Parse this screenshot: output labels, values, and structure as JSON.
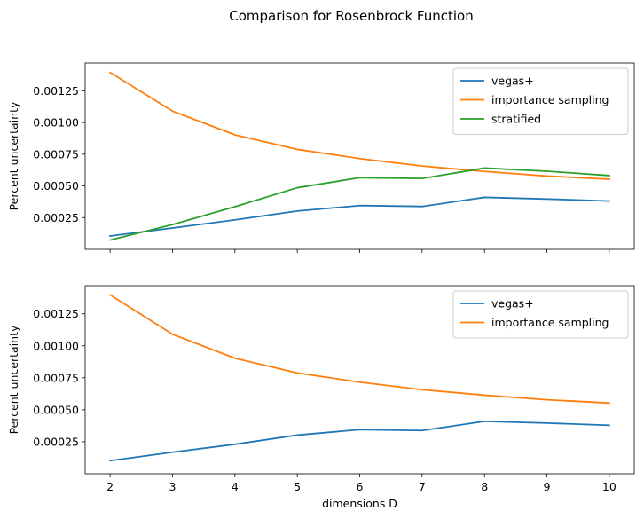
{
  "figure": {
    "title": "Comparison for Rosenbrock Function"
  },
  "chart_data": [
    {
      "type": "line",
      "title": "",
      "xlabel": "",
      "ylabel": "Percent uncertainty",
      "x": [
        2,
        3,
        4,
        5,
        6,
        7,
        8,
        9,
        10
      ],
      "xlim": [
        1.6,
        10.4
      ],
      "ylim": [
        0.0,
        0.00147
      ],
      "xticks": [
        2,
        3,
        4,
        5,
        6,
        7,
        8,
        9,
        10
      ],
      "xtick_labels_shown": false,
      "yticks": [
        0.00025,
        0.0005,
        0.00075,
        0.001,
        0.00125
      ],
      "ytick_labels": [
        "0.00025",
        "0.00050",
        "0.00075",
        "0.00100",
        "0.00125"
      ],
      "grid": false,
      "legend": "top-right",
      "series": [
        {
          "name": "vegas+",
          "color": "#1f77b4",
          "values": [
            0.000105,
            0.000168,
            0.000232,
            0.000302,
            0.000345,
            0.000338,
            0.00041,
            0.000397,
            0.000381
          ]
        },
        {
          "name": "importance sampling",
          "color": "#ff7f0e",
          "values": [
            0.001395,
            0.00109,
            0.000903,
            0.000788,
            0.000716,
            0.000657,
            0.000614,
            0.000578,
            0.000553
          ]
        },
        {
          "name": "stratified",
          "color": "#2ca02c",
          "values": [
            7.3e-05,
            0.000195,
            0.000336,
            0.000486,
            0.000565,
            0.000559,
            0.000641,
            0.000616,
            0.000582
          ]
        }
      ]
    },
    {
      "type": "line",
      "title": "",
      "xlabel": "dimensions D",
      "ylabel": "Percent uncertainty",
      "x": [
        2,
        3,
        4,
        5,
        6,
        7,
        8,
        9,
        10
      ],
      "xlim": [
        1.6,
        10.4
      ],
      "ylim": [
        0.0,
        0.00147
      ],
      "xticks": [
        2,
        3,
        4,
        5,
        6,
        7,
        8,
        9,
        10
      ],
      "xtick_labels": [
        "2",
        "3",
        "4",
        "5",
        "6",
        "7",
        "8",
        "9",
        "10"
      ],
      "xtick_labels_shown": true,
      "yticks": [
        0.00025,
        0.0005,
        0.00075,
        0.001,
        0.00125
      ],
      "ytick_labels": [
        "0.00025",
        "0.00050",
        "0.00075",
        "0.00100",
        "0.00125"
      ],
      "grid": false,
      "legend": "top-right",
      "series": [
        {
          "name": "vegas+",
          "color": "#1f77b4",
          "values": [
            0.000102,
            0.000168,
            0.00023,
            0.000302,
            0.000345,
            0.000338,
            0.00041,
            0.000396,
            0.000379
          ]
        },
        {
          "name": "importance sampling",
          "color": "#ff7f0e",
          "values": [
            0.001398,
            0.00109,
            0.000903,
            0.000788,
            0.000716,
            0.000657,
            0.000614,
            0.000578,
            0.000553
          ]
        }
      ]
    }
  ]
}
